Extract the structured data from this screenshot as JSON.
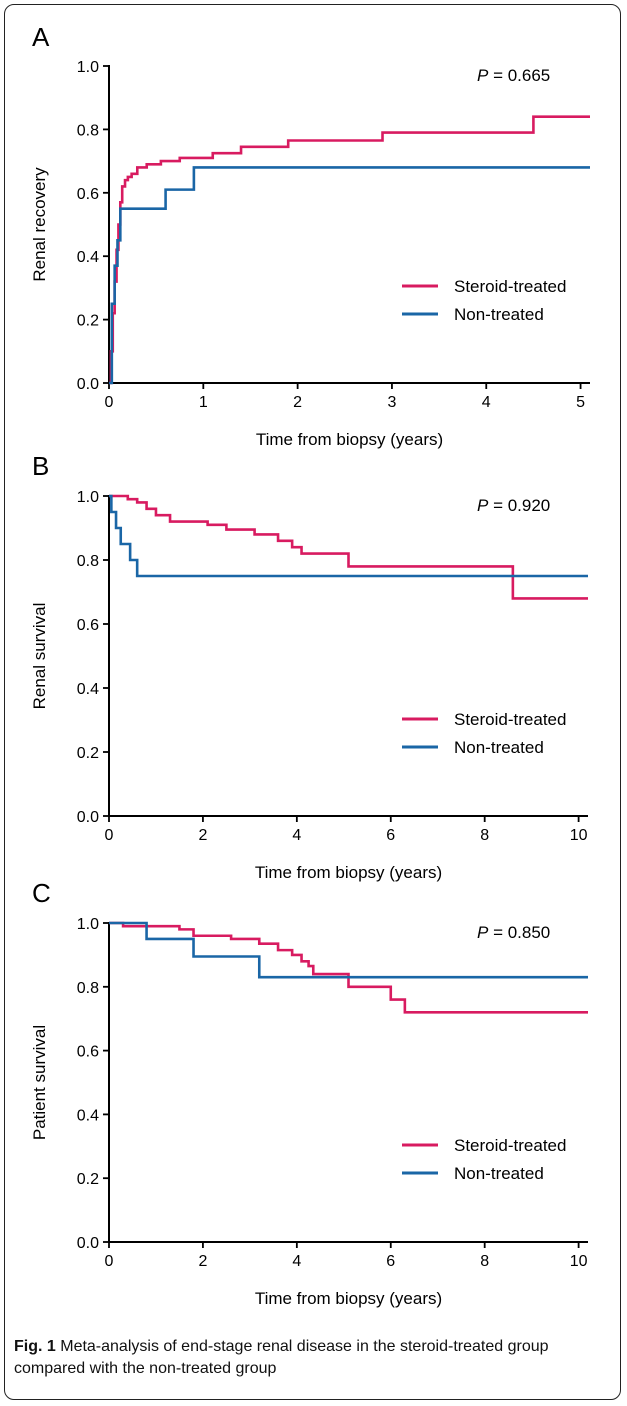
{
  "colors": {
    "treated": "#d81b60",
    "untreated": "#1a66a6"
  },
  "caption": {
    "label": "Fig. 1",
    "text": "Meta-analysis of end-stage renal disease in the steroid-treated group compared with the non-treated group"
  },
  "chart_data": [
    {
      "type": "line",
      "panel": "A",
      "p_label": "P",
      "p_value": "= 0.665",
      "xlabel": "Time from biopsy (years)",
      "ylabel": "Renal recovery",
      "xlim": [
        0,
        5.1
      ],
      "ylim": [
        0,
        1.0
      ],
      "xticks": [
        0,
        1,
        2,
        3,
        4,
        5
      ],
      "yticks": [
        0.0,
        0.2,
        0.4,
        0.6,
        0.8,
        1.0
      ],
      "ytick_labels": [
        "0.0",
        "0.2",
        "0.4",
        "0.6",
        "0.8",
        "1.0"
      ],
      "legend_position": "right",
      "series": [
        {
          "name": "Steroid-treated",
          "color_key": "treated",
          "x": [
            0,
            0.02,
            0.04,
            0.06,
            0.08,
            0.1,
            0.12,
            0.14,
            0.17,
            0.2,
            0.24,
            0.3,
            0.4,
            0.55,
            0.75,
            1.1,
            1.4,
            1.9,
            2.9,
            4.5,
            5.1
          ],
          "y": [
            0,
            0.1,
            0.22,
            0.32,
            0.42,
            0.5,
            0.57,
            0.62,
            0.64,
            0.65,
            0.66,
            0.68,
            0.69,
            0.7,
            0.71,
            0.725,
            0.745,
            0.765,
            0.79,
            0.84,
            0.84
          ]
        },
        {
          "name": "Non-treated",
          "color_key": "untreated",
          "x": [
            0,
            0.03,
            0.06,
            0.09,
            0.12,
            0.6,
            0.9,
            5.1
          ],
          "y": [
            0,
            0.25,
            0.37,
            0.45,
            0.55,
            0.61,
            0.68,
            0.68
          ]
        }
      ]
    },
    {
      "type": "line",
      "panel": "B",
      "p_label": "P",
      "p_value": "= 0.920",
      "xlabel": "Time from biopsy (years)",
      "ylabel": "Renal survival",
      "xlim": [
        0,
        10.2
      ],
      "ylim": [
        0,
        1.0
      ],
      "xticks": [
        0,
        2,
        4,
        6,
        8,
        10
      ],
      "yticks": [
        0.0,
        0.2,
        0.4,
        0.6,
        0.8,
        1.0
      ],
      "ytick_labels": [
        "0.0",
        "0.2",
        "0.4",
        "0.6",
        "0.8",
        "1.0"
      ],
      "legend_position": "right",
      "series": [
        {
          "name": "Steroid-treated",
          "color_key": "treated",
          "x": [
            0,
            0.4,
            0.6,
            0.8,
            1.0,
            1.3,
            2.1,
            2.5,
            3.1,
            3.6,
            3.9,
            4.1,
            5.1,
            8.6,
            10.2
          ],
          "y": [
            1.0,
            0.99,
            0.98,
            0.96,
            0.94,
            0.92,
            0.91,
            0.895,
            0.88,
            0.86,
            0.84,
            0.82,
            0.78,
            0.68,
            0.68
          ]
        },
        {
          "name": "Non-treated",
          "color_key": "untreated",
          "x": [
            0,
            0.05,
            0.15,
            0.25,
            0.45,
            0.6,
            10.2
          ],
          "y": [
            1.0,
            0.95,
            0.9,
            0.85,
            0.8,
            0.75,
            0.75
          ]
        }
      ]
    },
    {
      "type": "line",
      "panel": "C",
      "p_label": "P",
      "p_value": "= 0.850",
      "xlabel": "Time from biopsy (years)",
      "ylabel": "Patient survival",
      "xlim": [
        0,
        10.2
      ],
      "ylim": [
        0,
        1.0
      ],
      "xticks": [
        0,
        2,
        4,
        6,
        8,
        10
      ],
      "yticks": [
        0.0,
        0.2,
        0.4,
        0.6,
        0.8,
        1.0
      ],
      "ytick_labels": [
        "0.0",
        "0.2",
        "0.4",
        "0.6",
        "0.8",
        "1.0"
      ],
      "legend_position": "right",
      "series": [
        {
          "name": "Steroid-treated",
          "color_key": "treated",
          "x": [
            0,
            0.3,
            1.5,
            1.8,
            2.6,
            3.2,
            3.6,
            3.9,
            4.1,
            4.25,
            4.35,
            5.1,
            6.0,
            6.3,
            10.2
          ],
          "y": [
            1.0,
            0.99,
            0.98,
            0.96,
            0.95,
            0.935,
            0.915,
            0.9,
            0.88,
            0.865,
            0.84,
            0.8,
            0.76,
            0.72,
            0.72
          ]
        },
        {
          "name": "Non-treated",
          "color_key": "untreated",
          "x": [
            0,
            0.8,
            1.8,
            3.2,
            10.2
          ],
          "y": [
            1.0,
            0.95,
            0.895,
            0.83,
            0.83
          ]
        }
      ]
    }
  ]
}
